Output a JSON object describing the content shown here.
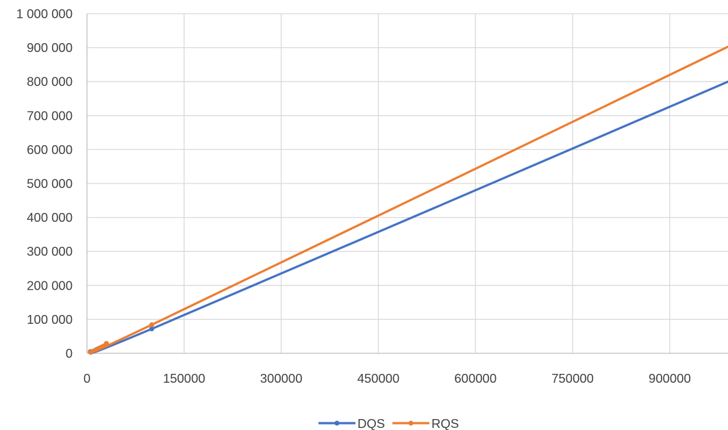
{
  "chart_data": {
    "type": "scatter",
    "title": "",
    "xlabel": "",
    "ylabel": "",
    "xlim": [
      0,
      990000
    ],
    "ylim": [
      0,
      1000000
    ],
    "x_ticks": [
      0,
      150000,
      300000,
      450000,
      600000,
      750000,
      900000
    ],
    "x_tick_labels": [
      "0",
      "150000",
      "300000",
      "450000",
      "600000",
      "750000",
      "900000"
    ],
    "y_ticks": [
      0,
      100000,
      200000,
      300000,
      400000,
      500000,
      600000,
      700000,
      800000,
      900000,
      1000000
    ],
    "y_tick_labels": [
      "0",
      "100 000",
      "200 000",
      "300 000",
      "400 000",
      "500 000",
      "600 000",
      "700 000",
      "800 000",
      "900 000",
      "1 000 000"
    ],
    "grid": true,
    "legend_position": "bottom",
    "series": [
      {
        "name": "DQS",
        "color": "#4472c4",
        "x": [
          5000,
          30000,
          100000,
          1000000
        ],
        "y": [
          5000,
          28000,
          72000,
          808000
        ]
      },
      {
        "name": "RQS",
        "color": "#ed7d31",
        "x": [
          5000,
          30000,
          100000,
          1000000
        ],
        "y": [
          4000,
          29000,
          84000,
          912000
        ]
      }
    ]
  }
}
